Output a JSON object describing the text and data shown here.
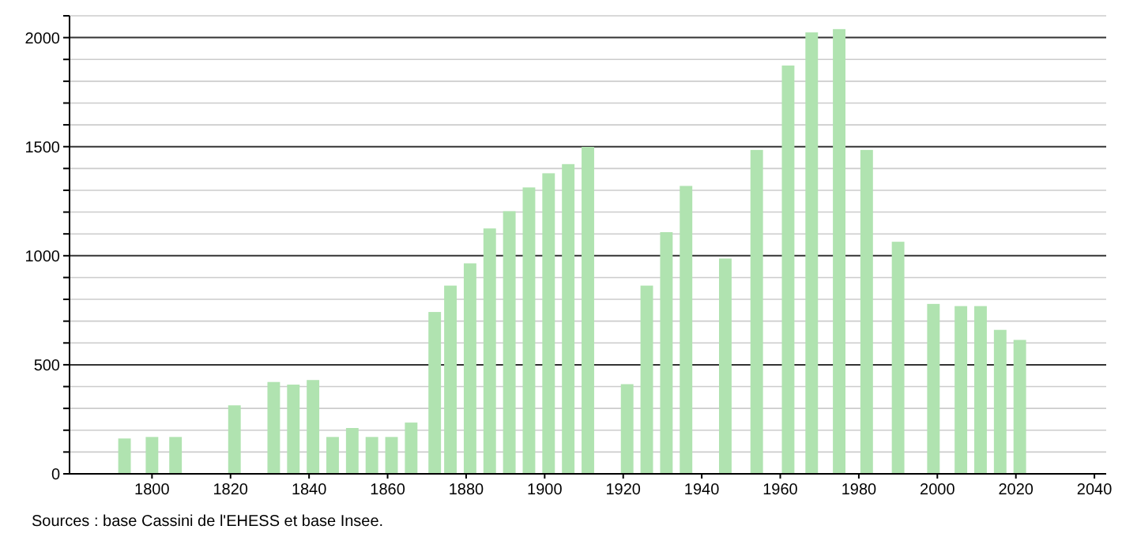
{
  "chart_data": {
    "type": "bar",
    "x": [
      1793,
      1800,
      1806,
      1821,
      1831,
      1836,
      1841,
      1846,
      1851,
      1856,
      1861,
      1866,
      1872,
      1876,
      1881,
      1886,
      1891,
      1896,
      1901,
      1906,
      1911,
      1921,
      1926,
      1931,
      1936,
      1946,
      1954,
      1962,
      1968,
      1975,
      1982,
      1990,
      1999,
      2006,
      2011,
      2016,
      2021
    ],
    "values": [
      162,
      169,
      169,
      314,
      421,
      409,
      430,
      169,
      210,
      169,
      169,
      235,
      742,
      863,
      965,
      1125,
      1204,
      1313,
      1378,
      1420,
      1499,
      411,
      863,
      1108,
      1320,
      987,
      1485,
      1872,
      2024,
      2039,
      1485,
      1064,
      779,
      769,
      769,
      660,
      614
    ],
    "color": "#b0e3b0",
    "xlim": [
      1779,
      2043
    ],
    "xticks": [
      1800,
      1820,
      1840,
      1860,
      1880,
      1900,
      1920,
      1940,
      1960,
      1980,
      2000,
      2020,
      2040
    ],
    "ylim": [
      0,
      2100
    ],
    "yticks": [
      0,
      {
        "value": 100,
        "label": null
      },
      {
        "value": 200,
        "label": null
      },
      {
        "value": 300,
        "label": null
      },
      {
        "value": 400,
        "label": null
      },
      500,
      {
        "value": 600,
        "label": null
      },
      {
        "value": 700,
        "label": null
      },
      {
        "value": 800,
        "label": null
      },
      {
        "value": 900,
        "label": null
      },
      1000,
      {
        "value": 1100,
        "label": null
      },
      {
        "value": 1200,
        "label": null
      },
      {
        "value": 1300,
        "label": null
      },
      {
        "value": 1400,
        "label": null
      },
      1500,
      {
        "value": 1600,
        "label": null
      },
      {
        "value": 1700,
        "label": null
      },
      {
        "value": 1800,
        "label": null
      },
      {
        "value": 1900,
        "label": null
      },
      2000,
      {
        "value": 2100,
        "label": null
      }
    ],
    "grid": true,
    "annotations": [
      "Sources : base Cassini de l'EHESS et base Insee."
    ]
  }
}
